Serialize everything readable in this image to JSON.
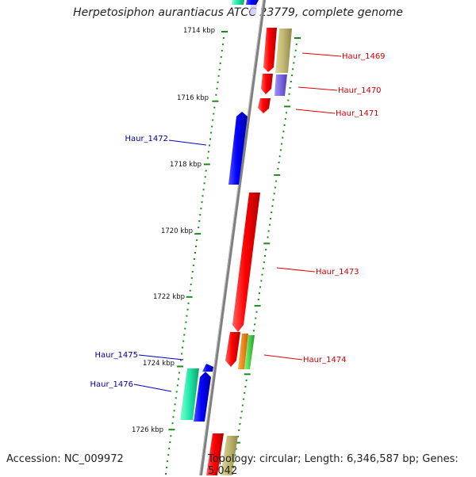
{
  "title": "Herpetosiphon aurantiacus ATCC 23779, complete genome",
  "footer": {
    "accession": "Accession: NC_009972",
    "topology": "Topology: circular; Length: 6,346,587 bp; Genes: 5,042"
  },
  "ticks": [
    "1714 kbp",
    "1716 kbp",
    "1718 kbp",
    "1720 kbp",
    "1722 kbp",
    "1724 kbp",
    "1726 kbp"
  ],
  "genes_plus": [
    {
      "label": "Haur_1469",
      "color": "#e00000"
    },
    {
      "label": "Haur_1470",
      "color": "#e00000"
    },
    {
      "label": "Haur_1471",
      "color": "#e00000"
    },
    {
      "label": "Haur_1473",
      "color": "#e00000"
    },
    {
      "label": "Haur_1474",
      "color": "#e00000"
    }
  ],
  "genes_minus": [
    {
      "label": "Haur_1472",
      "color": "#1010c0"
    },
    {
      "label": "Haur_1475",
      "color": "#1010c0"
    },
    {
      "label": "Haur_1476",
      "color": "#1010c0"
    }
  ],
  "colors": {
    "backbone": "#888888",
    "tick": "#1a8a1a",
    "plus_label": "#d00000",
    "minus_label": "#0000a0",
    "red": "#ee0000",
    "blue": "#0000ee",
    "khaki": "#bdb36a",
    "lavender": "#7b6bd8",
    "mint": "#20e0a0",
    "orange": "#f08000",
    "green": "#40c040"
  }
}
